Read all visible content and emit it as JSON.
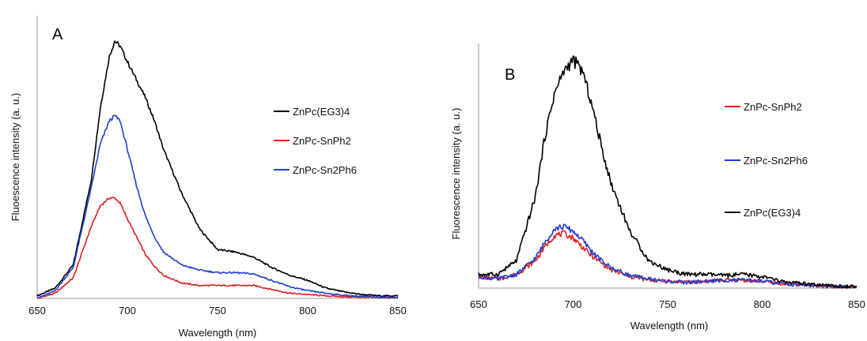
{
  "chart_data": [
    {
      "type": "line",
      "panel_label": "A",
      "xlabel": "Wavelength (nm)",
      "ylabel": "Fluoescence intensity (a. u.)",
      "xlim": [
        650,
        850
      ],
      "ylim": [
        0,
        1.0
      ],
      "xticks": [
        "650",
        "700",
        "750",
        "800",
        "850"
      ],
      "grid": false,
      "legend_position": "right",
      "x": [
        650,
        660,
        670,
        680,
        685,
        690,
        693,
        696,
        700,
        705,
        710,
        715,
        720,
        730,
        740,
        750,
        760,
        770,
        780,
        790,
        800,
        810,
        820,
        830,
        840,
        850
      ],
      "series": [
        {
          "name": "ZnPc(EG3)4",
          "color": "#000000",
          "values": [
            0.01,
            0.04,
            0.13,
            0.46,
            0.74,
            0.94,
            1.0,
            0.98,
            0.92,
            0.85,
            0.78,
            0.69,
            0.58,
            0.41,
            0.27,
            0.19,
            0.18,
            0.16,
            0.12,
            0.09,
            0.07,
            0.04,
            0.025,
            0.015,
            0.01,
            0.01
          ]
        },
        {
          "name": "ZnPc-SnPh2",
          "color": "#e02020",
          "values": [
            0.0,
            0.02,
            0.08,
            0.28,
            0.36,
            0.39,
            0.39,
            0.37,
            0.31,
            0.24,
            0.17,
            0.125,
            0.09,
            0.06,
            0.05,
            0.05,
            0.05,
            0.05,
            0.035,
            0.02,
            0.015,
            0.01,
            0.006,
            0.004,
            0.003,
            0.002
          ]
        },
        {
          "name": "ZnPc-Sn2Ph6",
          "color": "#1f3fd0",
          "values": [
            0.0,
            0.03,
            0.12,
            0.43,
            0.6,
            0.69,
            0.71,
            0.69,
            0.58,
            0.44,
            0.32,
            0.24,
            0.18,
            0.13,
            0.11,
            0.1,
            0.1,
            0.095,
            0.07,
            0.045,
            0.03,
            0.02,
            0.012,
            0.008,
            0.005,
            0.004
          ]
        }
      ]
    },
    {
      "type": "line",
      "panel_label": "B",
      "xlabel": "Wavelength (nm)",
      "ylabel": "Fluorescence intensity (a. u.)",
      "xlim": [
        650,
        850
      ],
      "ylim": [
        0,
        1.0
      ],
      "xticks": [
        "650",
        "700",
        "750",
        "800",
        "850"
      ],
      "grid": false,
      "legend_position": "right",
      "x": [
        650,
        660,
        670,
        680,
        685,
        690,
        695,
        700,
        705,
        710,
        715,
        720,
        730,
        740,
        750,
        760,
        770,
        780,
        790,
        800,
        810,
        820,
        830,
        840,
        850
      ],
      "series": [
        {
          "name": "ZnPc-SnPh2",
          "color": "#e02020",
          "values": [
            0.05,
            0.04,
            0.06,
            0.12,
            0.18,
            0.23,
            0.24,
            0.22,
            0.18,
            0.14,
            0.11,
            0.08,
            0.05,
            0.035,
            0.03,
            0.025,
            0.03,
            0.035,
            0.035,
            0.03,
            0.02,
            0.015,
            0.01,
            0.005,
            0.003
          ]
        },
        {
          "name": "ZnPc-Sn2Ph6",
          "color": "#1f3fd0",
          "values": [
            0.05,
            0.04,
            0.06,
            0.13,
            0.2,
            0.26,
            0.27,
            0.25,
            0.21,
            0.16,
            0.12,
            0.09,
            0.055,
            0.04,
            0.03,
            0.025,
            0.03,
            0.035,
            0.035,
            0.03,
            0.02,
            0.015,
            0.01,
            0.006,
            0.004
          ]
        },
        {
          "name": "ZnPc(EG3)4",
          "color": "#000000",
          "values": [
            0.06,
            0.06,
            0.12,
            0.4,
            0.66,
            0.85,
            0.95,
            1.0,
            0.95,
            0.8,
            0.62,
            0.46,
            0.25,
            0.12,
            0.08,
            0.06,
            0.06,
            0.055,
            0.06,
            0.05,
            0.03,
            0.02,
            0.012,
            0.008,
            0.005
          ]
        }
      ]
    }
  ]
}
